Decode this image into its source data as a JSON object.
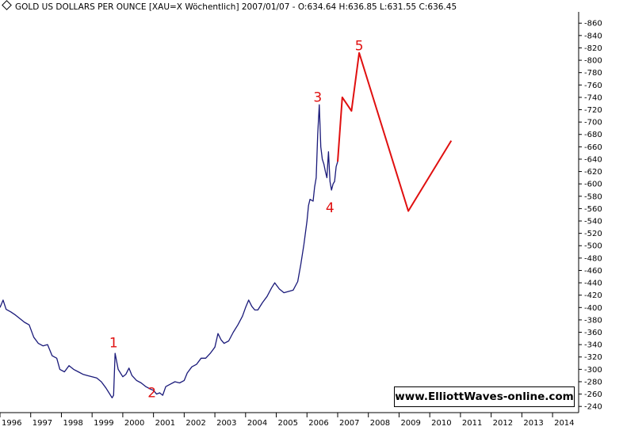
{
  "header": {
    "title": "GOLD US DOLLARS PER OUNCE [XAU=X  Wöchentlich] 2007/01/07 - O:634.64 H:636.85 L:631.55 C:636.45"
  },
  "credit": "www.ElliottWaves-online.com",
  "colors": {
    "price": "#1a1a7a",
    "projection": "#e01010",
    "labels": "#e01010"
  },
  "chart_data": {
    "type": "line",
    "title": "GOLD US DOLLARS PER OUNCE [XAU=X  Wöchentlich] 2007/01/07 - O:634.64 H:636.85 L:631.55 C:636.45",
    "xlabel": "",
    "ylabel": "",
    "x_ticks": [
      "1996",
      "1997",
      "1998",
      "1999",
      "2000",
      "2001",
      "2002",
      "2003",
      "2004",
      "2005",
      "2006",
      "2007",
      "2008",
      "2009",
      "2010",
      "2011",
      "2012",
      "2013",
      "2014"
    ],
    "y_ticks": [
      240,
      260,
      280,
      300,
      320,
      340,
      360,
      380,
      400,
      420,
      440,
      460,
      480,
      500,
      520,
      540,
      560,
      580,
      600,
      620,
      640,
      660,
      680,
      700,
      720,
      740,
      760,
      780,
      800,
      820,
      840,
      860
    ],
    "xlim": [
      1996.0,
      2014.85
    ],
    "ylim": [
      230,
      868
    ],
    "grid": false,
    "series": [
      {
        "role": "weekly price",
        "x": [
          1996.0,
          1996.1,
          1996.2,
          1996.35,
          1996.5,
          1996.65,
          1996.8,
          1996.95,
          1997.1,
          1997.25,
          1997.4,
          1997.55,
          1997.7,
          1997.85,
          1997.95,
          1998.1,
          1998.25,
          1998.4,
          1998.55,
          1998.7,
          1998.85,
          1999.0,
          1999.15,
          1999.3,
          1999.45,
          1999.55,
          1999.65,
          1999.7,
          1999.75,
          1999.85,
          2000.0,
          2000.1,
          2000.2,
          2000.3,
          2000.45,
          2000.6,
          2000.75,
          2000.9,
          2001.0,
          2001.1,
          2001.2,
          2001.3,
          2001.4,
          2001.55,
          2001.7,
          2001.85,
          2002.0,
          2002.1,
          2002.25,
          2002.4,
          2002.55,
          2002.7,
          2002.85,
          2003.0,
          2003.1,
          2003.2,
          2003.3,
          2003.45,
          2003.6,
          2003.75,
          2003.9,
          2004.0,
          2004.1,
          2004.2,
          2004.3,
          2004.4,
          2004.55,
          2004.7,
          2004.85,
          2004.95,
          2005.1,
          2005.25,
          2005.4,
          2005.55,
          2005.7,
          2005.8,
          2005.9,
          2006.0,
          2006.05,
          2006.1,
          2006.2,
          2006.25,
          2006.3,
          2006.35,
          2006.4,
          2006.45,
          2006.5,
          2006.55,
          2006.6,
          2006.65,
          2006.7,
          2006.75,
          2006.8,
          2006.85,
          2006.9,
          2006.95,
          2007.0
        ],
        "y": [
          400,
          412,
          397,
          393,
          388,
          382,
          376,
          372,
          352,
          342,
          338,
          340,
          322,
          318,
          300,
          296,
          306,
          300,
          296,
          292,
          290,
          288,
          286,
          280,
          270,
          262,
          254,
          258,
          326,
          300,
          288,
          292,
          302,
          290,
          282,
          278,
          272,
          268,
          266,
          260,
          262,
          258,
          272,
          276,
          280,
          278,
          282,
          294,
          304,
          308,
          318,
          318,
          326,
          336,
          358,
          348,
          342,
          346,
          360,
          372,
          386,
          400,
          412,
          402,
          396,
          396,
          408,
          418,
          432,
          440,
          430,
          424,
          426,
          428,
          442,
          470,
          502,
          540,
          565,
          575,
          572,
          595,
          610,
          680,
          728,
          660,
          640,
          632,
          620,
          610,
          652,
          604,
          590,
          600,
          604,
          628,
          636
        ]
      },
      {
        "role": "Elliott wave projection",
        "x": [
          2007.0,
          2007.15,
          2007.45,
          2007.7,
          2009.3,
          2010.7
        ],
        "y": [
          636,
          740,
          718,
          812,
          556,
          670
        ]
      }
    ],
    "annotations": [
      {
        "text": "1",
        "x": 1999.7,
        "y": 336
      },
      {
        "text": "2",
        "x": 2000.95,
        "y": 255
      },
      {
        "text": "3",
        "x": 2006.35,
        "y": 733
      },
      {
        "text": "4",
        "x": 2006.75,
        "y": 554
      },
      {
        "text": "5",
        "x": 2007.7,
        "y": 816
      }
    ]
  }
}
